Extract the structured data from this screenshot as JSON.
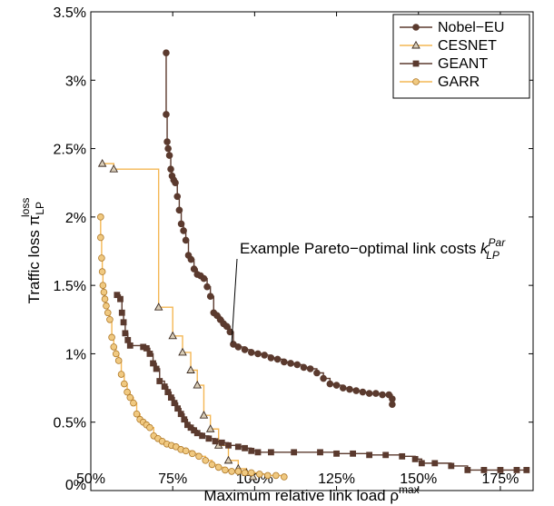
{
  "chart_data": {
    "type": "line",
    "xlabel": "Maximum relative link load",
    "xlabel_symbol": "ρ",
    "xlabel_sup": "max",
    "ylabel": "Traffic loss",
    "ylabel_symbol": "π",
    "ylabel_sub": "LP",
    "ylabel_sup": "loss",
    "xlim": [
      50,
      185
    ],
    "ylim": [
      0,
      3.5
    ],
    "x_ticks": [
      50,
      75,
      100,
      125,
      150,
      175
    ],
    "x_tick_labels": [
      "50%",
      "75%",
      "100%",
      "125%",
      "150%",
      "175%"
    ],
    "y_ticks": [
      0,
      0.5,
      1,
      1.5,
      2,
      2.5,
      3,
      3.5
    ],
    "y_tick_labels": [
      "0%",
      "0.5%",
      "1%",
      "1.5%",
      "2%",
      "2.5%",
      "3%",
      "3.5%"
    ],
    "grid": false,
    "legend_position": "top-right",
    "colors": {
      "dark": "#5b3a2e",
      "light": "#f4b754"
    },
    "annotation": {
      "text": "Example Pareto−optimal link costs",
      "symbol": "k",
      "sub": "LP",
      "sup": "Par",
      "target": [
        93,
        1.07
      ]
    },
    "series": [
      {
        "name": "Nobel−EU",
        "color": "#5b3a2e",
        "marker": "circle",
        "marker_fill": "#5b3a2e",
        "x": [
          73,
          73,
          73.3,
          73.6,
          74,
          74.4,
          74.8,
          75.3,
          75.8,
          76.4,
          77,
          77.6,
          78.3,
          79,
          79.8,
          80.6,
          81.5,
          82.5,
          83.5,
          84.5,
          85.5,
          86.5,
          87.5,
          88.5,
          89.5,
          90.5,
          91.5,
          92.5,
          93.5,
          95,
          97,
          99,
          101,
          103,
          105,
          107,
          109,
          111,
          113,
          115,
          117,
          119,
          121,
          123,
          125,
          127,
          129,
          131,
          133,
          135,
          137,
          139,
          141,
          142,
          142
        ],
        "y": [
          3.2,
          2.75,
          2.55,
          2.5,
          2.45,
          2.35,
          2.3,
          2.27,
          2.25,
          2.15,
          2.05,
          1.95,
          1.9,
          1.83,
          1.72,
          1.69,
          1.62,
          1.58,
          1.57,
          1.55,
          1.49,
          1.42,
          1.3,
          1.28,
          1.25,
          1.22,
          1.2,
          1.16,
          1.07,
          1.05,
          1.03,
          1.01,
          1.0,
          0.99,
          0.97,
          0.96,
          0.94,
          0.93,
          0.92,
          0.9,
          0.89,
          0.86,
          0.82,
          0.78,
          0.77,
          0.75,
          0.74,
          0.73,
          0.72,
          0.71,
          0.71,
          0.7,
          0.7,
          0.67,
          0.63
        ]
      },
      {
        "name": "CESNET",
        "color": "#f4b754",
        "marker": "triangle",
        "marker_fill": "#d9cdb8",
        "x": [
          53.5,
          57,
          70.7,
          75,
          78,
          80.5,
          82.5,
          84.5,
          86.5,
          89,
          92,
          95,
          97.5,
          99.5
        ],
        "y": [
          2.39,
          2.35,
          1.34,
          1.13,
          1.01,
          0.88,
          0.77,
          0.55,
          0.45,
          0.33,
          0.22,
          0.16,
          0.13,
          0.1
        ]
      },
      {
        "name": "GEANT",
        "color": "#5b3a2e",
        "marker": "square",
        "marker_fill": "#5b3a2e",
        "x": [
          58,
          59,
          59.5,
          60,
          60.5,
          61.3,
          62,
          66,
          67,
          68,
          69,
          70,
          71,
          72.5,
          73.5,
          74.5,
          75.5,
          76.5,
          77.5,
          78.5,
          79.5,
          80.5,
          81.5,
          82.5,
          84,
          86,
          88,
          90,
          92,
          95,
          97,
          99,
          101,
          105,
          112,
          120,
          125,
          130,
          135,
          140,
          145,
          149,
          151,
          155,
          160,
          165,
          170,
          175,
          180,
          183
        ],
        "y": [
          1.43,
          1.4,
          1.3,
          1.23,
          1.15,
          1.1,
          1.06,
          1.05,
          1.04,
          1.0,
          0.93,
          0.89,
          0.8,
          0.76,
          0.72,
          0.68,
          0.64,
          0.6,
          0.56,
          0.52,
          0.48,
          0.46,
          0.44,
          0.42,
          0.4,
          0.38,
          0.36,
          0.35,
          0.33,
          0.32,
          0.31,
          0.29,
          0.28,
          0.28,
          0.28,
          0.28,
          0.27,
          0.27,
          0.26,
          0.26,
          0.25,
          0.23,
          0.2,
          0.2,
          0.18,
          0.15,
          0.15,
          0.15,
          0.15,
          0.15
        ]
      },
      {
        "name": "GARR",
        "color": "#f4b754",
        "marker": "circle",
        "marker_fill": "#f0c981",
        "x": [
          53,
          53,
          53.3,
          53.5,
          53.7,
          54,
          54.3,
          54.7,
          55.2,
          55.8,
          56.4,
          57,
          57.7,
          58.5,
          59.3,
          60.2,
          61.1,
          62,
          63,
          64,
          65,
          66,
          67,
          68,
          69.2,
          70.5,
          71.8,
          73.2,
          74.6,
          76,
          77.5,
          79,
          81,
          83,
          85,
          87,
          89,
          91,
          93,
          95,
          97,
          99,
          101.5,
          104,
          106.5,
          109
        ],
        "y": [
          2.0,
          1.85,
          1.7,
          1.6,
          1.5,
          1.45,
          1.4,
          1.35,
          1.3,
          1.25,
          1.12,
          1.05,
          1.0,
          0.95,
          0.85,
          0.78,
          0.72,
          0.68,
          0.64,
          0.56,
          0.52,
          0.5,
          0.48,
          0.46,
          0.4,
          0.38,
          0.36,
          0.34,
          0.33,
          0.32,
          0.3,
          0.29,
          0.27,
          0.25,
          0.22,
          0.19,
          0.17,
          0.15,
          0.14,
          0.14,
          0.13,
          0.13,
          0.12,
          0.11,
          0.11,
          0.1
        ]
      }
    ]
  }
}
